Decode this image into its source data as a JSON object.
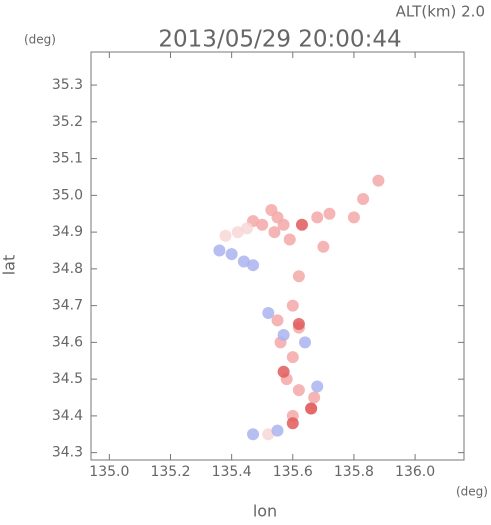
{
  "chart_data": {
    "type": "scatter",
    "altitude_label": "ALT(km)  2.0",
    "title": "2013/05/29 20:00:44",
    "y_unit": "(deg)",
    "x_unit": "(deg)",
    "ylabel": "lat",
    "xlabel": "lon",
    "xlim": [
      134.94,
      136.16
    ],
    "ylim": [
      34.28,
      35.39
    ],
    "xticks": [
      {
        "value": 135,
        "label": "135.0"
      },
      135.2,
      135.4,
      135.6,
      135.8,
      {
        "value": 136,
        "label": "136.0"
      }
    ],
    "yticks": [
      34.3,
      34.4,
      34.5,
      34.6,
      34.7,
      34.8,
      34.9,
      {
        "value": 35,
        "label": "35.0"
      },
      35.1,
      35.2,
      35.3
    ],
    "series": [
      {
        "color": "#f4a8a8",
        "x": [
          135.53,
          135.55,
          135.57,
          135.54,
          135.59,
          135.47,
          135.5,
          135.68,
          135.72,
          135.8,
          135.83,
          135.88,
          135.7,
          135.62,
          135.6,
          135.55,
          135.62,
          135.56,
          135.6,
          135.58,
          135.62,
          135.67,
          135.6,
          135.66
        ],
        "y": [
          34.96,
          34.94,
          34.92,
          34.9,
          34.88,
          34.93,
          34.92,
          34.94,
          34.95,
          34.94,
          34.99,
          35.04,
          34.86,
          34.78,
          34.7,
          34.66,
          34.64,
          34.6,
          34.56,
          34.5,
          34.47,
          34.45,
          34.4,
          34.42
        ]
      },
      {
        "color": "#f8d6d6",
        "x": [
          135.42,
          135.45,
          135.38,
          135.52
        ],
        "y": [
          34.9,
          34.91,
          34.89,
          34.35
        ]
      },
      {
        "color": "#aab3ef",
        "x": [
          135.4,
          135.44,
          135.47,
          135.36,
          135.57,
          135.52,
          135.64,
          135.68,
          135.55,
          135.47
        ],
        "y": [
          34.84,
          34.82,
          34.81,
          34.85,
          34.62,
          34.68,
          34.6,
          34.48,
          34.36,
          34.35
        ]
      },
      {
        "color": "#e25a5a",
        "x": [
          135.66,
          135.62,
          135.57,
          135.6,
          135.63
        ],
        "y": [
          34.42,
          34.65,
          34.52,
          34.38,
          34.92
        ]
      }
    ]
  }
}
